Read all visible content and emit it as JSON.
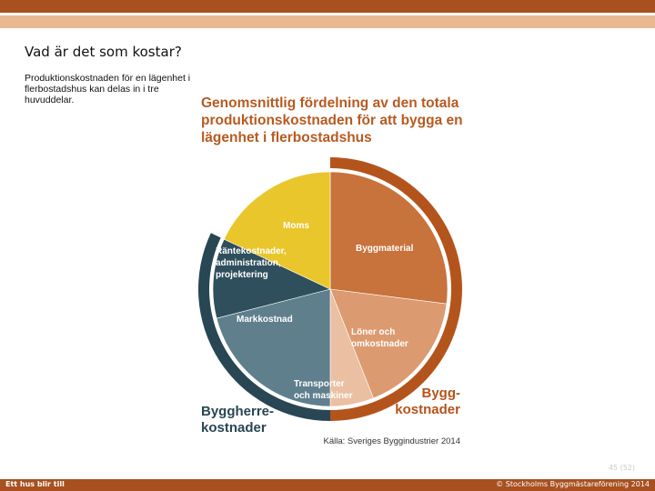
{
  "slide": {
    "title": "Vad är det som kostar?",
    "body": "Produktionskostnaden för en lägenhet i flerbostadshus kan delas in i tre huvuddelar.",
    "page_number": "45 (52)"
  },
  "footer": {
    "left": "Ett hus blir till",
    "right": "© Stockholms Byggmästareförening 2014"
  },
  "chart_data": {
    "type": "pie",
    "title": "Genomsnittlig fördelning av den totala produktionskostnaden för att bygga en lägenhet i flerbostadshus",
    "slices": [
      {
        "label": "Byggmaterial",
        "value": 27,
        "color": "#c8723c",
        "label_lines": [
          "Byggmaterial"
        ]
      },
      {
        "label": "Löner och omkostnader",
        "value": 17,
        "color": "#dc9a70",
        "label_lines": [
          "Löner och",
          "omkostnader"
        ]
      },
      {
        "label": "Transporter och maskiner",
        "value": 6,
        "color": "#ebbfa2",
        "label_lines": [
          "Transporter",
          "och maskiner"
        ]
      },
      {
        "label": "Markkostnad",
        "value": 21,
        "color": "#5f7f8d",
        "label_lines": [
          "Markkostnad"
        ]
      },
      {
        "label": "Räntekostnader, administration, projektering",
        "value": 11,
        "color": "#2f4f5c",
        "label_lines": [
          "Räntekostnader,",
          "administration,",
          "projektering"
        ]
      },
      {
        "label": "Moms",
        "value": 18,
        "color": "#e9c62b",
        "label_lines": [
          "Moms"
        ]
      }
    ],
    "groups": [
      {
        "label": "Bygg-kostnader",
        "label_lines": [
          "Bygg-",
          "kostnader"
        ],
        "slices": [
          0,
          1,
          2
        ],
        "color": "#b4541d"
      },
      {
        "label": "Byggherre-kostnader",
        "label_lines": [
          "Byggherre-",
          "kostnader"
        ],
        "slices": [
          3,
          4
        ],
        "color": "#284653"
      }
    ],
    "source": "Källa: Sveriges Byggindustrier 2014"
  }
}
